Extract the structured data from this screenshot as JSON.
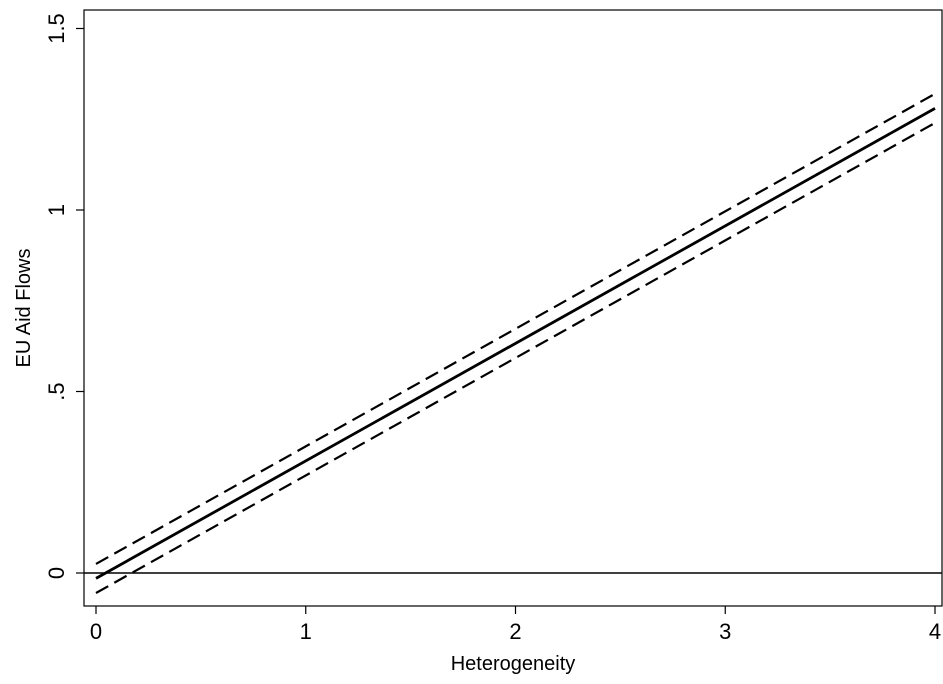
{
  "chart_data": {
    "type": "line",
    "title": "",
    "xlabel": "Heterogeneity",
    "ylabel": "EU Aid Flows",
    "xlim": [
      0,
      4
    ],
    "ylim": [
      -0.1,
      1.5
    ],
    "x_ticks": [
      {
        "value": 0,
        "label": "0"
      },
      {
        "value": 1,
        "label": "1"
      },
      {
        "value": 2,
        "label": "2"
      },
      {
        "value": 3,
        "label": "3"
      },
      {
        "value": 4,
        "label": "4"
      }
    ],
    "y_ticks": [
      {
        "value": 0,
        "label": "0"
      },
      {
        "value": 0.5,
        "label": ".5"
      },
      {
        "value": 1,
        "label": "1"
      },
      {
        "value": 1.5,
        "label": "1.5"
      }
    ],
    "reference_line": {
      "y": 0,
      "color": "#000000"
    },
    "grid": false,
    "legend": "none",
    "series": [
      {
        "style": "solid",
        "color": "#000000",
        "x": [
          0,
          4
        ],
        "y": [
          -0.015,
          1.28
        ]
      },
      {
        "style": "dashed",
        "color": "#000000",
        "x": [
          0,
          4
        ],
        "y": [
          0.025,
          1.32
        ]
      },
      {
        "style": "dashed",
        "color": "#000000",
        "x": [
          0,
          4
        ],
        "y": [
          -0.055,
          1.24
        ]
      }
    ]
  }
}
